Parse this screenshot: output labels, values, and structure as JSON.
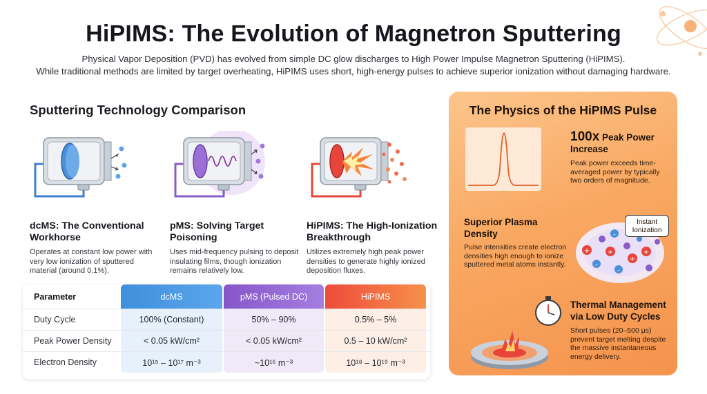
{
  "header": {
    "title": "HiPIMS: The Evolution of Magnetron Sputtering",
    "subtitle_line1": "Physical Vapor Deposition (PVD) has evolved from simple DC glow discharges to High Power Impulse Magnetron Sputtering (HiPIMS).",
    "subtitle_line2": "While traditional methods are limited by target overheating, HiPIMS uses short, high-energy pulses to achieve superior ionization without damaging hardware."
  },
  "comparison": {
    "section_title": "Sputtering Technology Comparison",
    "technologies": [
      {
        "title": "dcMS: The Conventional Workhorse",
        "description": "Operates at constant low power with very low ionization of sputtered material (around 0.1%).",
        "icon": "dc-magnetron-icon",
        "color": "#4a90d9"
      },
      {
        "title": "pMS: Solving Target Poisoning",
        "description": "Uses mid-frequency pulsing to deposit insulating films, though ionization remains relatively low.",
        "icon": "pulsed-magnetron-icon",
        "color": "#8a5cc7"
      },
      {
        "title": "HiPIMS: The High-Ionization Breakthrough",
        "description": "Utilizes extremely high peak power densities to generate highly ionized deposition fluxes.",
        "icon": "hipims-magnetron-icon",
        "color": "#e8453a"
      }
    ]
  },
  "table": {
    "headers": [
      "Parameter",
      "dcMS",
      "pMS (Pulsed DC)",
      "HiPIMS"
    ],
    "rows": [
      [
        "Duty Cycle",
        "100% (Constant)",
        "50% – 90%",
        "0.5% – 5%"
      ],
      [
        "Peak Power Density",
        "< 0.05 kW/cm²",
        "< 0.05 kW/cm²",
        "0.5 – 10 kW/cm²"
      ],
      [
        "Electron Density",
        "10¹⁵ – 10¹⁷ m⁻³",
        "~10¹⁶ m⁻³",
        "10¹⁸ – 10¹⁹ m⁻³"
      ]
    ]
  },
  "physics": {
    "title": "The Physics of the HiPIMS Pulse",
    "peak": {
      "head_big": "100x",
      "head_rest": " Peak Power",
      "head_line2": "Increase",
      "text": "Peak power exceeds time-averaged power by typically two orders of magnitude."
    },
    "plasma": {
      "head": "Superior Plasma Density",
      "text": "Pulse intensities create electron densities high enough to ionize sputtered metal atoms instantly.",
      "bubble": "Instant Ionization"
    },
    "thermal": {
      "head": "Thermal Management via Low Duty Cycles",
      "text": "Short pulses (20–500 μs) prevent target melting despite the massive instantaneous energy delivery."
    }
  },
  "colors": {
    "dc": "#4a90d9",
    "pulsed": "#8a5cc7",
    "hipims": "#e8453a",
    "panel": "#f9a862"
  }
}
